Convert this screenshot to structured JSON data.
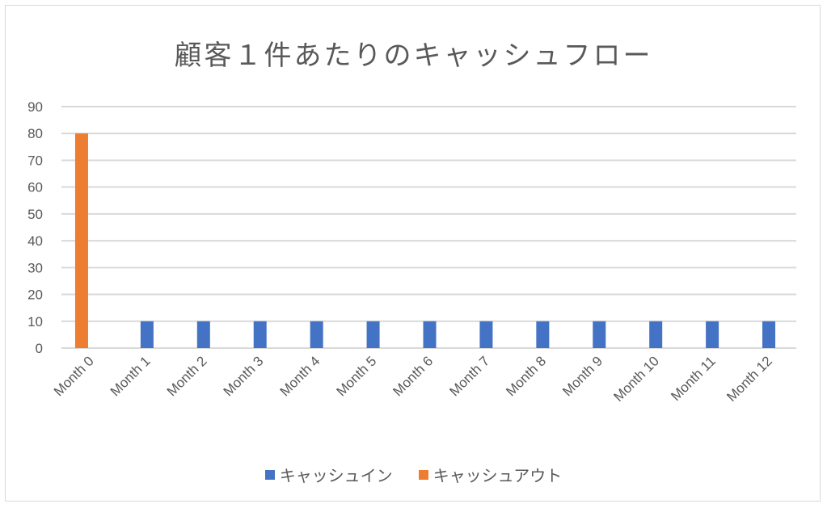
{
  "chart_data": {
    "type": "bar",
    "title": "顧客１件あたりのキャッシュフロー",
    "categories": [
      "Month 0",
      "Month 1",
      "Month 2",
      "Month 3",
      "Month 4",
      "Month 5",
      "Month 6",
      "Month 7",
      "Month 8",
      "Month 9",
      "Month 10",
      "Month 11",
      "Month 12"
    ],
    "series": [
      {
        "name": "キャッシュイン",
        "color": "#4472c4",
        "values": [
          0,
          10,
          10,
          10,
          10,
          10,
          10,
          10,
          10,
          10,
          10,
          10,
          10
        ]
      },
      {
        "name": "キャッシュアウト",
        "color": "#ed7d31",
        "values": [
          80,
          0,
          0,
          0,
          0,
          0,
          0,
          0,
          0,
          0,
          0,
          0,
          0
        ]
      }
    ],
    "ylim": [
      0,
      90
    ],
    "yticks": [
      0,
      10,
      20,
      30,
      40,
      50,
      60,
      70,
      80,
      90
    ],
    "grid": true,
    "legend": "bottom"
  }
}
